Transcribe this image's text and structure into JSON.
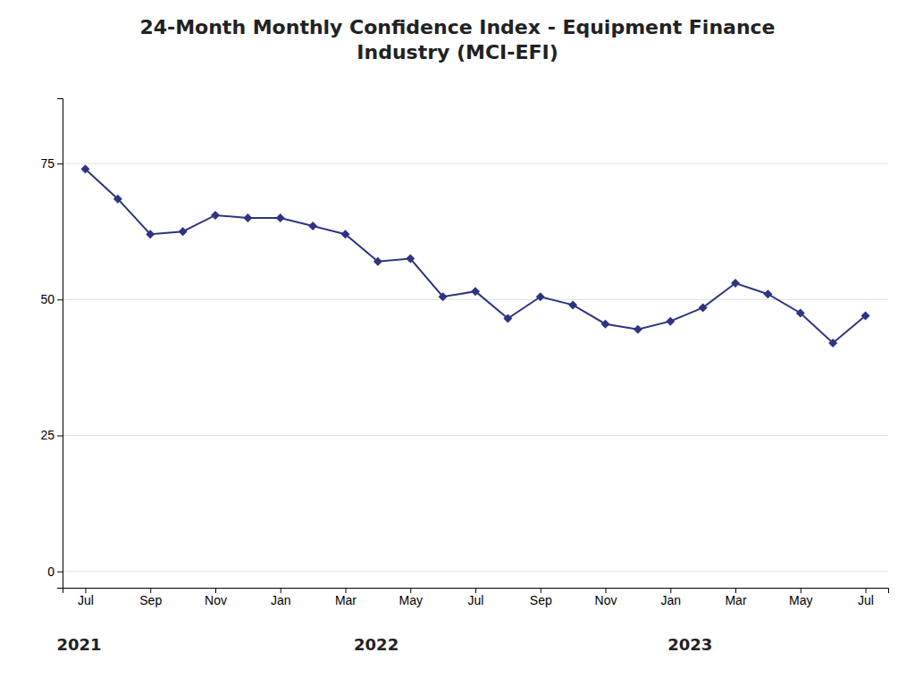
{
  "chart_data": {
    "type": "line",
    "title": "24-Month Monthly Confidence Index - Equipment Finance\nIndustry (MCI-EFI)",
    "categories": [
      "Jul",
      null,
      "Sep",
      null,
      "Nov",
      null,
      "Jan",
      null,
      "Mar",
      null,
      "May",
      null,
      "Jul",
      null,
      "Sep",
      null,
      "Nov",
      null,
      "Jan",
      null,
      "Mar",
      null,
      "May",
      null,
      "Jul"
    ],
    "values": [
      74.0,
      68.5,
      62.0,
      62.5,
      65.5,
      65.0,
      65.0,
      63.5,
      62.0,
      57.0,
      57.5,
      50.5,
      51.5,
      46.5,
      50.5,
      49.0,
      45.5,
      44.5,
      46.0,
      48.5,
      53.0,
      51.0,
      47.5,
      42.0,
      47.0
    ],
    "color": "#2e3480",
    "marker": "diamond",
    "ylim": [
      -3,
      87
    ],
    "yticks": [
      0,
      25,
      50,
      75
    ],
    "grid": true,
    "annotations": [
      "2021",
      "2022",
      "2023"
    ]
  }
}
